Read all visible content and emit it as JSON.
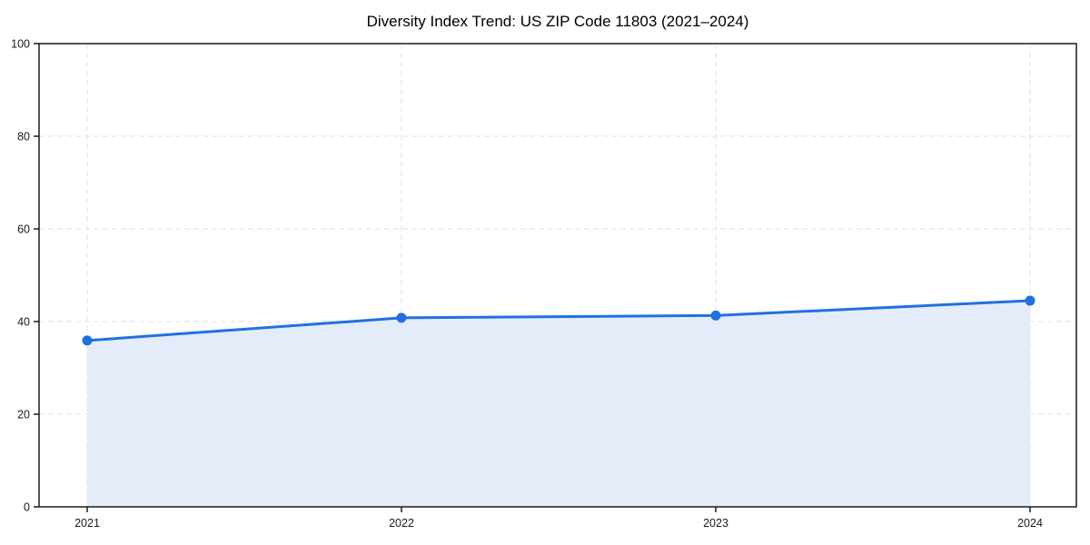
{
  "chart_data": {
    "type": "line",
    "title": "Diversity Index Trend: US ZIP Code 11803 (2021–2024)",
    "categories": [
      "2021",
      "2022",
      "2023",
      "2024"
    ],
    "series": [
      {
        "name": "Diversity Index",
        "values": [
          35.9,
          40.8,
          41.3,
          44.5
        ]
      }
    ],
    "xlabel": "",
    "ylabel": "",
    "ylim": [
      0,
      100
    ],
    "yticks": [
      0,
      20,
      40,
      60,
      80,
      100
    ],
    "grid": true,
    "grid_style": "dashed",
    "legend": "none",
    "style": {
      "line_color": "#2270e0",
      "marker_color": "#2270e0",
      "area_fill_color": "#e4ecfa",
      "gridline_color": "#e2e2e2",
      "spine_color": "#1a1a1a",
      "background_color": "#ffffff",
      "marker": "circle",
      "area": true
    }
  }
}
